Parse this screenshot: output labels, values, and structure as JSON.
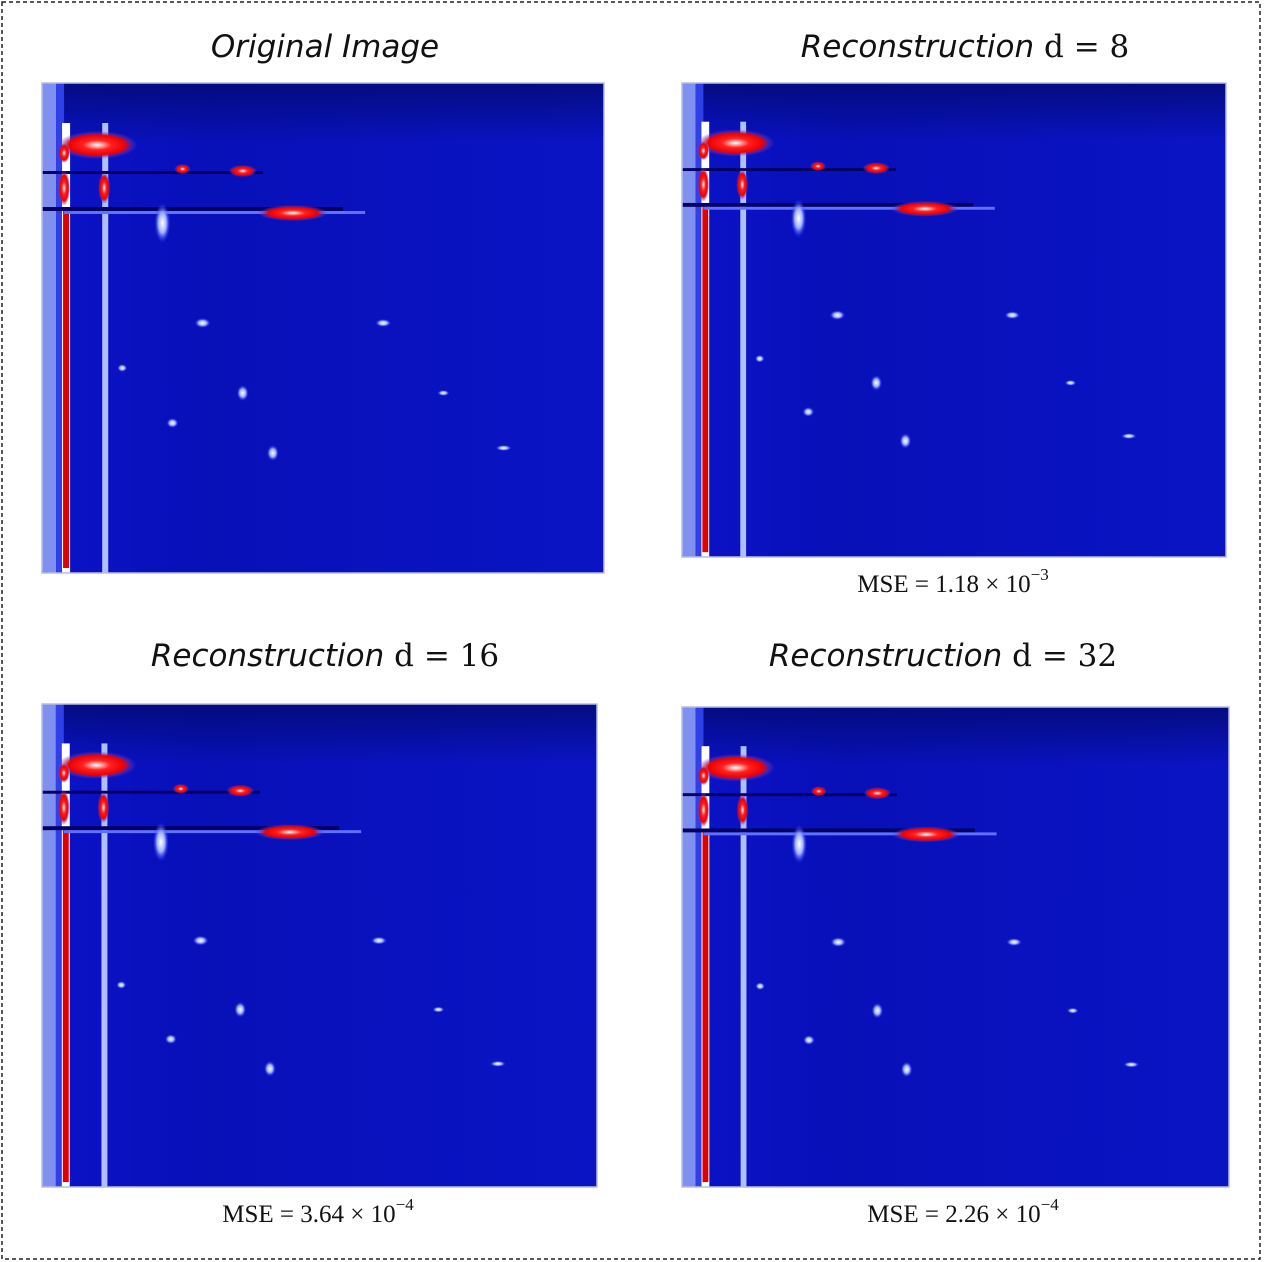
{
  "panels": [
    {
      "title": "Original Image"
    },
    {
      "title": "Reconstruction",
      "math": "d = 8",
      "caption": {
        "text": "MSE = 1.18 × 10",
        "exponent": "−3"
      }
    },
    {
      "title": "Reconstruction",
      "math": "d = 16",
      "caption": {
        "text": "MSE = 3.64 × 10",
        "exponent": "−4"
      }
    },
    {
      "title": "Reconstruction",
      "math": "d = 32",
      "caption": {
        "text": "MSE = 2.26 × 10",
        "exponent": "−4"
      }
    }
  ]
}
